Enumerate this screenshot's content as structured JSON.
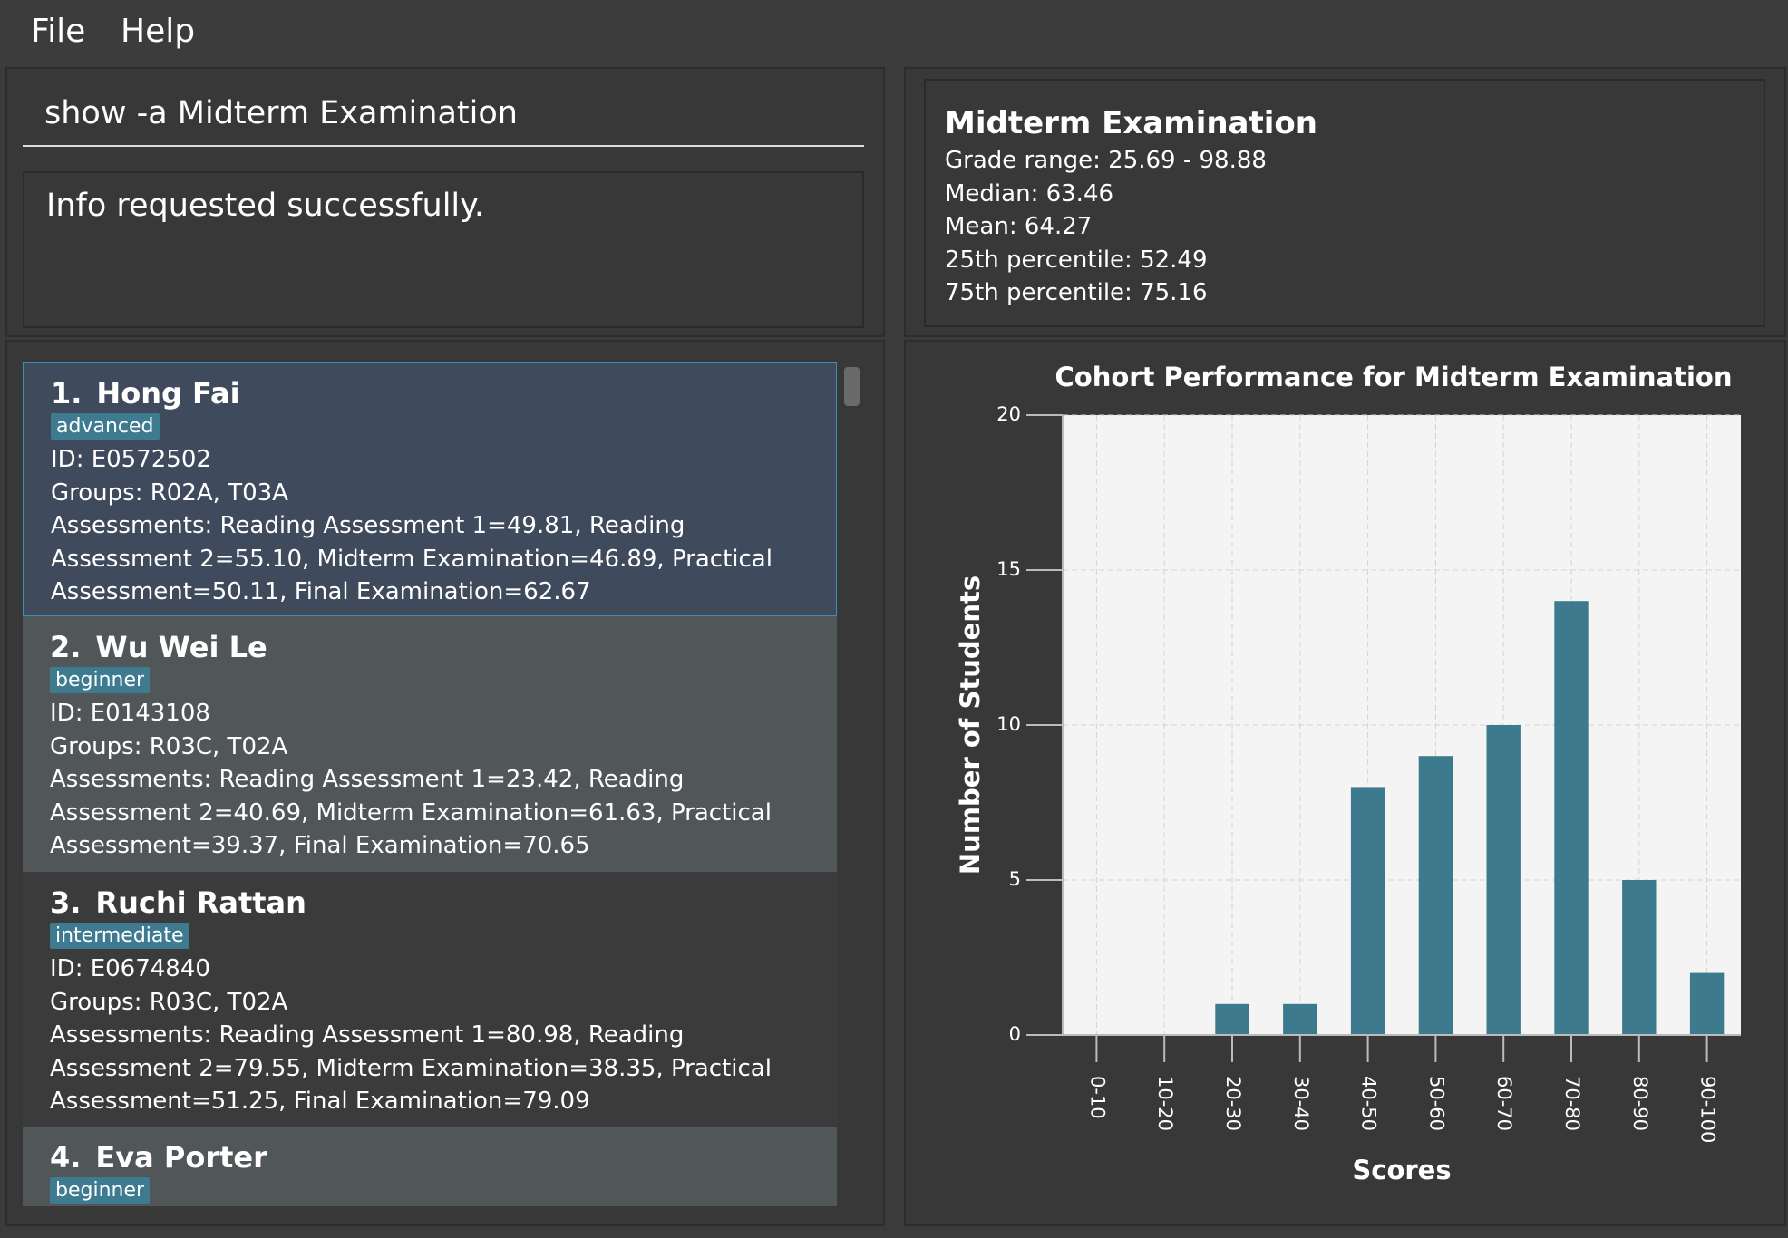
{
  "menu": [
    "File",
    "Help"
  ],
  "command": "show -a Midterm Examination",
  "result": "Info requested successfully.",
  "students": [
    {
      "index": "1.",
      "name": "Hong Fai",
      "tag": "advanced",
      "id": "ID: E0572502",
      "groups": "Groups: R02A, T03A",
      "assessments": "Assessments: Reading Assessment 1=49.81, Reading Assessment 2=55.10, Midterm Examination=46.89, Practical Assessment=50.11, Final Examination=62.67"
    },
    {
      "index": "2.",
      "name": "Wu Wei Le",
      "tag": "beginner",
      "id": "ID: E0143108",
      "groups": "Groups: R03C, T02A",
      "assessments": "Assessments: Reading Assessment 1=23.42, Reading Assessment 2=40.69, Midterm Examination=61.63, Practical Assessment=39.37, Final Examination=70.65"
    },
    {
      "index": "3.",
      "name": "Ruchi Rattan",
      "tag": "intermediate",
      "id": "ID: E0674840",
      "groups": "Groups: R03C, T02A",
      "assessments": "Assessments: Reading Assessment 1=80.98, Reading Assessment 2=79.55, Midterm Examination=38.35, Practical Assessment=51.25, Final Examination=79.09"
    },
    {
      "index": "4.",
      "name": "Eva Porter",
      "tag": "beginner"
    }
  ],
  "stats": {
    "title": "Midterm Examination",
    "lines": [
      "Grade range: 25.69 - 98.88",
      "Median: 63.46",
      "Mean: 64.27",
      "25th percentile: 52.49",
      "75th percentile: 75.16"
    ]
  },
  "chart_data": {
    "type": "bar",
    "title": "Cohort Performance for Midterm Examination",
    "x_label": "Scores",
    "y_label": "Number of Students",
    "categories": [
      "0-10",
      "10-20",
      "20-30",
      "30-40",
      "40-50",
      "50-60",
      "60-70",
      "70-80",
      "80-90",
      "90-100"
    ],
    "values": [
      0,
      0,
      1,
      1,
      8,
      9,
      10,
      14,
      5,
      2
    ],
    "color": "#3d7a8e",
    "ylim": [
      0,
      20
    ],
    "yticks": [
      0,
      5,
      10,
      15,
      20
    ],
    "grid": true
  }
}
